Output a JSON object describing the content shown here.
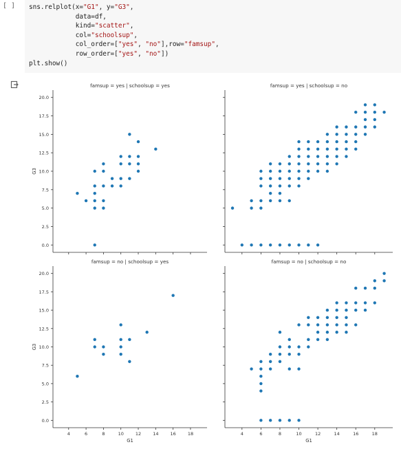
{
  "cell": {
    "run_label": "[ ]",
    "code_lines": [
      [
        {
          "t": "sns.relplot(x="
        },
        {
          "t": "\"G1\"",
          "s": true
        },
        {
          "t": ", y="
        },
        {
          "t": "\"G3\"",
          "s": true
        },
        {
          "t": ","
        }
      ],
      [
        {
          "t": "            data=df,"
        }
      ],
      [
        {
          "t": "            kind="
        },
        {
          "t": "\"scatter\"",
          "s": true
        },
        {
          "t": ","
        }
      ],
      [
        {
          "t": "            col="
        },
        {
          "t": "\"schoolsup\"",
          "s": true
        },
        {
          "t": ","
        }
      ],
      [
        {
          "t": "            col_order=["
        },
        {
          "t": "\"yes\"",
          "s": true
        },
        {
          "t": ", "
        },
        {
          "t": "\"no\"",
          "s": true
        },
        {
          "t": "],row="
        },
        {
          "t": "\"famsup\"",
          "s": true
        },
        {
          "t": ","
        }
      ],
      [
        {
          "t": "            row_order=["
        },
        {
          "t": "\"yes\"",
          "s": true
        },
        {
          "t": ", "
        },
        {
          "t": "\"no\"",
          "s": true
        },
        {
          "t": "])"
        }
      ],
      [
        {
          "t": "plt.show()"
        }
      ]
    ]
  },
  "colors": {
    "point": "#1f77b4",
    "string": "#a31515",
    "code_bg": "#f7f7f7"
  },
  "chart_data": {
    "type": "scatter",
    "xlabel": "G1",
    "ylabel": "G3",
    "xticks": [
      4,
      6,
      8,
      10,
      12,
      14,
      16,
      18
    ],
    "yticks": [
      "0.0",
      "2.5",
      "5.0",
      "7.5",
      "10.0",
      "12.5",
      "15.0",
      "17.5",
      "20.0"
    ],
    "xlim": [
      2.2,
      19.9
    ],
    "ylim": [
      -1,
      21
    ],
    "panels": [
      {
        "title": "famsup = yes | schoolsup = yes",
        "points": [
          [
            5,
            7
          ],
          [
            6,
            6
          ],
          [
            7,
            0
          ],
          [
            7,
            5
          ],
          [
            7,
            6
          ],
          [
            7,
            7
          ],
          [
            7,
            8
          ],
          [
            7,
            10
          ],
          [
            8,
            5
          ],
          [
            8,
            6
          ],
          [
            8,
            8
          ],
          [
            8,
            10
          ],
          [
            8,
            11
          ],
          [
            9,
            8
          ],
          [
            9,
            9
          ],
          [
            10,
            8
          ],
          [
            10,
            9
          ],
          [
            10,
            11
          ],
          [
            10,
            12
          ],
          [
            11,
            9
          ],
          [
            11,
            11
          ],
          [
            11,
            12
          ],
          [
            11,
            15
          ],
          [
            12,
            10
          ],
          [
            12,
            11
          ],
          [
            12,
            12
          ],
          [
            12,
            14
          ],
          [
            14,
            13
          ]
        ]
      },
      {
        "title": "famsup = yes | schoolsup = no",
        "points": [
          [
            3,
            5
          ],
          [
            4,
            0
          ],
          [
            5,
            0
          ],
          [
            5,
            5
          ],
          [
            5,
            6
          ],
          [
            6,
            0
          ],
          [
            6,
            5
          ],
          [
            6,
            6
          ],
          [
            6,
            8
          ],
          [
            6,
            9
          ],
          [
            6,
            10
          ],
          [
            7,
            0
          ],
          [
            7,
            6
          ],
          [
            7,
            7
          ],
          [
            7,
            8
          ],
          [
            7,
            9
          ],
          [
            7,
            10
          ],
          [
            7,
            11
          ],
          [
            8,
            0
          ],
          [
            8,
            6
          ],
          [
            8,
            7
          ],
          [
            8,
            8
          ],
          [
            8,
            9
          ],
          [
            8,
            10
          ],
          [
            8,
            11
          ],
          [
            9,
            0
          ],
          [
            9,
            6
          ],
          [
            9,
            8
          ],
          [
            9,
            9
          ],
          [
            9,
            10
          ],
          [
            9,
            11
          ],
          [
            9,
            12
          ],
          [
            10,
            0
          ],
          [
            10,
            8
          ],
          [
            10,
            9
          ],
          [
            10,
            10
          ],
          [
            10,
            11
          ],
          [
            10,
            12
          ],
          [
            10,
            13
          ],
          [
            10,
            14
          ],
          [
            11,
            0
          ],
          [
            11,
            9
          ],
          [
            11,
            10
          ],
          [
            11,
            11
          ],
          [
            11,
            12
          ],
          [
            11,
            13
          ],
          [
            11,
            14
          ],
          [
            12,
            0
          ],
          [
            12,
            10
          ],
          [
            12,
            11
          ],
          [
            12,
            12
          ],
          [
            12,
            13
          ],
          [
            12,
            14
          ],
          [
            13,
            10
          ],
          [
            13,
            11
          ],
          [
            13,
            12
          ],
          [
            13,
            13
          ],
          [
            13,
            14
          ],
          [
            13,
            15
          ],
          [
            14,
            11
          ],
          [
            14,
            12
          ],
          [
            14,
            13
          ],
          [
            14,
            14
          ],
          [
            14,
            15
          ],
          [
            14,
            16
          ],
          [
            15,
            12
          ],
          [
            15,
            13
          ],
          [
            15,
            14
          ],
          [
            15,
            15
          ],
          [
            15,
            16
          ],
          [
            16,
            13
          ],
          [
            16,
            14
          ],
          [
            16,
            15
          ],
          [
            16,
            16
          ],
          [
            16,
            18
          ],
          [
            17,
            15
          ],
          [
            17,
            16
          ],
          [
            17,
            17
          ],
          [
            17,
            18
          ],
          [
            17,
            19
          ],
          [
            18,
            16
          ],
          [
            18,
            17
          ],
          [
            18,
            18
          ],
          [
            18,
            19
          ],
          [
            19,
            18
          ]
        ]
      },
      {
        "title": "famsup = no | schoolsup = yes",
        "points": [
          [
            5,
            6
          ],
          [
            7,
            10
          ],
          [
            7,
            11
          ],
          [
            8,
            9
          ],
          [
            8,
            10
          ],
          [
            10,
            9
          ],
          [
            10,
            10
          ],
          [
            10,
            11
          ],
          [
            10,
            13
          ],
          [
            11,
            8
          ],
          [
            11,
            11
          ],
          [
            13,
            12
          ],
          [
            16,
            17
          ]
        ]
      },
      {
        "title": "famsup = no | schoolsup = no",
        "points": [
          [
            5,
            7
          ],
          [
            6,
            0
          ],
          [
            6,
            4
          ],
          [
            6,
            5
          ],
          [
            6,
            6
          ],
          [
            6,
            7
          ],
          [
            6,
            8
          ],
          [
            7,
            0
          ],
          [
            7,
            7
          ],
          [
            7,
            8
          ],
          [
            7,
            9
          ],
          [
            8,
            0
          ],
          [
            8,
            8
          ],
          [
            8,
            9
          ],
          [
            8,
            10
          ],
          [
            8,
            12
          ],
          [
            9,
            0
          ],
          [
            9,
            7
          ],
          [
            9,
            9
          ],
          [
            9,
            10
          ],
          [
            9,
            11
          ],
          [
            10,
            0
          ],
          [
            10,
            7
          ],
          [
            10,
            9
          ],
          [
            10,
            10
          ],
          [
            10,
            13
          ],
          [
            11,
            10
          ],
          [
            11,
            11
          ],
          [
            11,
            13
          ],
          [
            11,
            14
          ],
          [
            12,
            11
          ],
          [
            12,
            12
          ],
          [
            12,
            13
          ],
          [
            12,
            14
          ],
          [
            13,
            11
          ],
          [
            13,
            12
          ],
          [
            13,
            13
          ],
          [
            13,
            14
          ],
          [
            13,
            15
          ],
          [
            14,
            12
          ],
          [
            14,
            13
          ],
          [
            14,
            14
          ],
          [
            14,
            15
          ],
          [
            14,
            16
          ],
          [
            15,
            12
          ],
          [
            15,
            13
          ],
          [
            15,
            14
          ],
          [
            15,
            15
          ],
          [
            15,
            16
          ],
          [
            16,
            13
          ],
          [
            16,
            15
          ],
          [
            16,
            16
          ],
          [
            16,
            18
          ],
          [
            17,
            15
          ],
          [
            17,
            16
          ],
          [
            17,
            18
          ],
          [
            18,
            16
          ],
          [
            18,
            18
          ],
          [
            18,
            19
          ],
          [
            19,
            19
          ],
          [
            19,
            20
          ]
        ]
      }
    ]
  }
}
